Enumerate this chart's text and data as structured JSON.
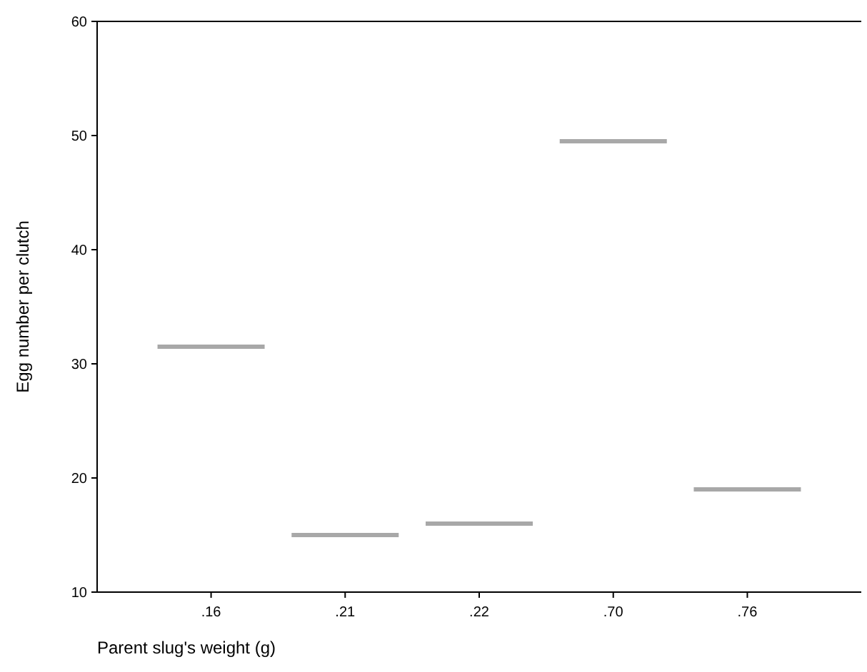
{
  "chart_data": {
    "type": "box",
    "xlabel": "Parent slug's weight (g)",
    "ylabel": "Egg number per clutch",
    "categories": [
      ".16",
      ".21",
      ".22",
      ".70",
      ".76"
    ],
    "boxes": [
      {
        "low": 31.5,
        "q1": 31.5,
        "median": 31.5,
        "q3": 31.5,
        "high": 31.5
      },
      {
        "low": 15,
        "q1": 15,
        "median": 15,
        "q3": 15,
        "high": 15
      },
      {
        "low": 16,
        "q1": 16,
        "median": 16,
        "q3": 16,
        "high": 16
      },
      {
        "low": 49.5,
        "q1": 49.5,
        "median": 49.5,
        "q3": 49.5,
        "high": 49.5
      },
      {
        "low": 19,
        "q1": 19,
        "median": 19,
        "q3": 19,
        "high": 19
      }
    ],
    "color": "#a8a8a8",
    "ylim": [
      10,
      60
    ],
    "yticks": [
      10,
      20,
      30,
      40,
      50,
      60
    ],
    "grid": false
  }
}
